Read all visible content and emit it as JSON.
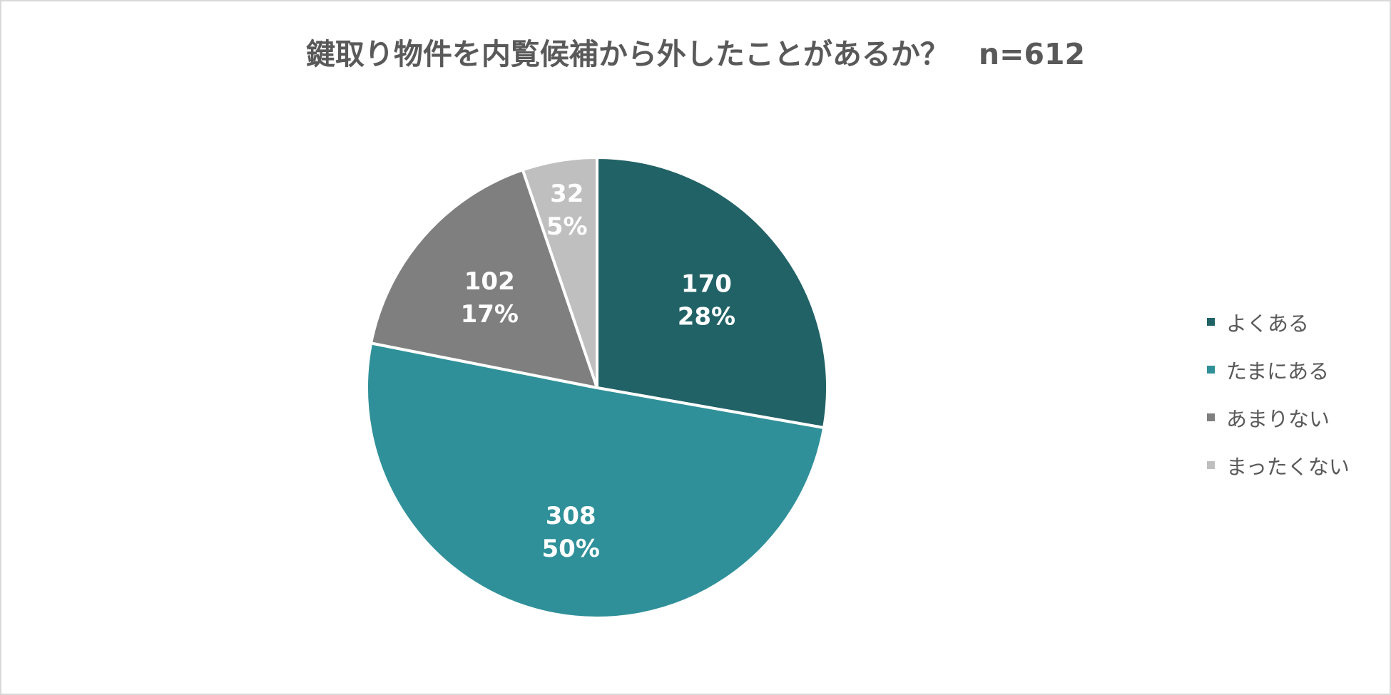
{
  "chart_data": {
    "type": "pie",
    "title": "鍵取り物件を内覧候補から外したことがあるか？　n=612",
    "categories": [
      "よくある",
      "たまにある",
      "あまりない",
      "まったくない"
    ],
    "values": [
      170,
      308,
      102,
      32
    ],
    "percent_labels": [
      "28%",
      "50%",
      "17%",
      "5%"
    ],
    "colors": [
      "#216266",
      "#2f9099",
      "#7f7f7f",
      "#bfbfbf"
    ],
    "legend_position": "right",
    "start_angle": "12 o'clock, clockwise"
  }
}
